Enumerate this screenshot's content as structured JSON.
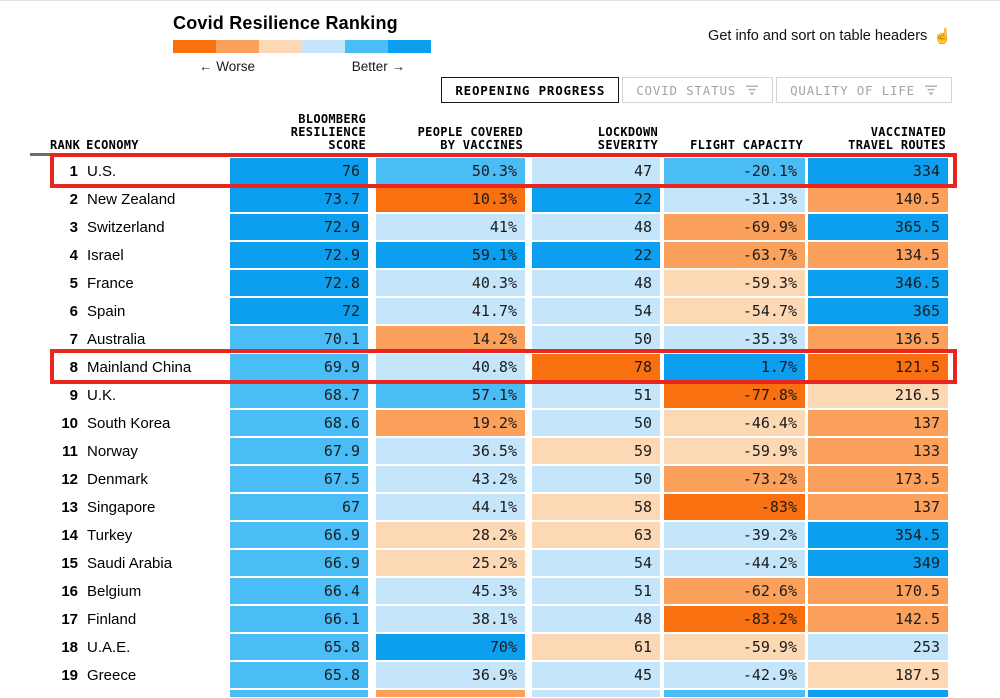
{
  "page": {
    "hint": "Get info and sort on table headers",
    "hint_icon": "☝"
  },
  "header": {
    "title": "Covid Resilience Ranking",
    "legend": {
      "worse": "← Worse",
      "better": "Better →",
      "segments": [
        "dark_orange",
        "medium_orange",
        "pale_orange",
        "pale_blue",
        "medium_blue",
        "bright_blue"
      ]
    },
    "tabs": [
      {
        "label": "REOPENING PROGRESS",
        "active": true,
        "filter_icon": false
      },
      {
        "label": "COVID STATUS",
        "active": false,
        "filter_icon": true
      },
      {
        "label": "QUALITY OF LIFE",
        "active": false,
        "filter_icon": true
      }
    ]
  },
  "chart_data": {
    "type": "table",
    "title": "Covid Resilience Ranking",
    "color_scale": {
      "palette": {
        "dark_orange": "#f8700f",
        "medium_orange": "#fba15c",
        "pale_orange": "#fcd8b5",
        "pale_blue": "#c5e6fa",
        "medium_blue": "#4abdf7",
        "bright_blue": "#0c9ff0"
      },
      "order_worse_to_better": [
        "dark_orange",
        "medium_orange",
        "pale_orange",
        "pale_blue",
        "medium_blue",
        "bright_blue"
      ]
    },
    "highlight_color": "#e8251f",
    "headers": {
      "rank": "RANK",
      "economy": "ECONOMY",
      "score": "BLOOMBERG\nRESILIENCE\nSCORE",
      "vaccines": "PEOPLE COVERED\nBY VACCINES",
      "lockdown": "LOCKDOWN\nSEVERITY",
      "flight": "FLIGHT CAPACITY",
      "routes": "VACCINATED\nTRAVEL ROUTES"
    },
    "rows": [
      {
        "rank": "1",
        "economy": "U.S.",
        "highlight": true,
        "score": [
          "76",
          "bright_blue"
        ],
        "vaccines": [
          "50.3%",
          "medium_blue"
        ],
        "lockdown": [
          "47",
          "pale_blue"
        ],
        "flight": [
          "-20.1%",
          "medium_blue"
        ],
        "routes": [
          "334",
          "bright_blue"
        ]
      },
      {
        "rank": "2",
        "economy": "New Zealand",
        "highlight": false,
        "score": [
          "73.7",
          "bright_blue"
        ],
        "vaccines": [
          "10.3%",
          "dark_orange"
        ],
        "lockdown": [
          "22",
          "bright_blue"
        ],
        "flight": [
          "-31.3%",
          "pale_blue"
        ],
        "routes": [
          "140.5",
          "medium_orange"
        ]
      },
      {
        "rank": "3",
        "economy": "Switzerland",
        "highlight": false,
        "score": [
          "72.9",
          "bright_blue"
        ],
        "vaccines": [
          "41%",
          "pale_blue"
        ],
        "lockdown": [
          "48",
          "pale_blue"
        ],
        "flight": [
          "-69.9%",
          "medium_orange"
        ],
        "routes": [
          "365.5",
          "bright_blue"
        ]
      },
      {
        "rank": "4",
        "economy": "Israel",
        "highlight": false,
        "score": [
          "72.9",
          "bright_blue"
        ],
        "vaccines": [
          "59.1%",
          "bright_blue"
        ],
        "lockdown": [
          "22",
          "bright_blue"
        ],
        "flight": [
          "-63.7%",
          "medium_orange"
        ],
        "routes": [
          "134.5",
          "medium_orange"
        ]
      },
      {
        "rank": "5",
        "economy": "France",
        "highlight": false,
        "score": [
          "72.8",
          "bright_blue"
        ],
        "vaccines": [
          "40.3%",
          "pale_blue"
        ],
        "lockdown": [
          "48",
          "pale_blue"
        ],
        "flight": [
          "-59.3%",
          "pale_orange"
        ],
        "routes": [
          "346.5",
          "bright_blue"
        ]
      },
      {
        "rank": "6",
        "economy": "Spain",
        "highlight": false,
        "score": [
          "72",
          "bright_blue"
        ],
        "vaccines": [
          "41.7%",
          "pale_blue"
        ],
        "lockdown": [
          "54",
          "pale_blue"
        ],
        "flight": [
          "-54.7%",
          "pale_orange"
        ],
        "routes": [
          "365",
          "bright_blue"
        ]
      },
      {
        "rank": "7",
        "economy": "Australia",
        "highlight": false,
        "score": [
          "70.1",
          "medium_blue"
        ],
        "vaccines": [
          "14.2%",
          "medium_orange"
        ],
        "lockdown": [
          "50",
          "pale_blue"
        ],
        "flight": [
          "-35.3%",
          "pale_blue"
        ],
        "routes": [
          "136.5",
          "medium_orange"
        ]
      },
      {
        "rank": "8",
        "economy": "Mainland China",
        "highlight": true,
        "score": [
          "69.9",
          "medium_blue"
        ],
        "vaccines": [
          "40.8%",
          "pale_blue"
        ],
        "lockdown": [
          "78",
          "dark_orange"
        ],
        "flight": [
          "1.7%",
          "bright_blue"
        ],
        "routes": [
          "121.5",
          "dark_orange"
        ]
      },
      {
        "rank": "9",
        "economy": "U.K.",
        "highlight": false,
        "score": [
          "68.7",
          "medium_blue"
        ],
        "vaccines": [
          "57.1%",
          "medium_blue"
        ],
        "lockdown": [
          "51",
          "pale_blue"
        ],
        "flight": [
          "-77.8%",
          "dark_orange"
        ],
        "routes": [
          "216.5",
          "pale_orange"
        ]
      },
      {
        "rank": "10",
        "economy": "South Korea",
        "highlight": false,
        "score": [
          "68.6",
          "medium_blue"
        ],
        "vaccines": [
          "19.2%",
          "medium_orange"
        ],
        "lockdown": [
          "50",
          "pale_blue"
        ],
        "flight": [
          "-46.4%",
          "pale_orange"
        ],
        "routes": [
          "137",
          "medium_orange"
        ]
      },
      {
        "rank": "11",
        "economy": "Norway",
        "highlight": false,
        "score": [
          "67.9",
          "medium_blue"
        ],
        "vaccines": [
          "36.5%",
          "pale_blue"
        ],
        "lockdown": [
          "59",
          "pale_orange"
        ],
        "flight": [
          "-59.9%",
          "pale_orange"
        ],
        "routes": [
          "133",
          "medium_orange"
        ]
      },
      {
        "rank": "12",
        "economy": "Denmark",
        "highlight": false,
        "score": [
          "67.5",
          "medium_blue"
        ],
        "vaccines": [
          "43.2%",
          "pale_blue"
        ],
        "lockdown": [
          "50",
          "pale_blue"
        ],
        "flight": [
          "-73.2%",
          "medium_orange"
        ],
        "routes": [
          "173.5",
          "medium_orange"
        ]
      },
      {
        "rank": "13",
        "economy": "Singapore",
        "highlight": false,
        "score": [
          "67",
          "medium_blue"
        ],
        "vaccines": [
          "44.1%",
          "pale_blue"
        ],
        "lockdown": [
          "58",
          "pale_orange"
        ],
        "flight": [
          "-83%",
          "dark_orange"
        ],
        "routes": [
          "137",
          "medium_orange"
        ]
      },
      {
        "rank": "14",
        "economy": "Turkey",
        "highlight": false,
        "score": [
          "66.9",
          "medium_blue"
        ],
        "vaccines": [
          "28.2%",
          "pale_orange"
        ],
        "lockdown": [
          "63",
          "pale_orange"
        ],
        "flight": [
          "-39.2%",
          "pale_blue"
        ],
        "routes": [
          "354.5",
          "bright_blue"
        ]
      },
      {
        "rank": "15",
        "economy": "Saudi Arabia",
        "highlight": false,
        "score": [
          "66.9",
          "medium_blue"
        ],
        "vaccines": [
          "25.2%",
          "pale_orange"
        ],
        "lockdown": [
          "54",
          "pale_blue"
        ],
        "flight": [
          "-44.2%",
          "pale_blue"
        ],
        "routes": [
          "349",
          "bright_blue"
        ]
      },
      {
        "rank": "16",
        "economy": "Belgium",
        "highlight": false,
        "score": [
          "66.4",
          "medium_blue"
        ],
        "vaccines": [
          "45.3%",
          "pale_blue"
        ],
        "lockdown": [
          "51",
          "pale_blue"
        ],
        "flight": [
          "-62.6%",
          "medium_orange"
        ],
        "routes": [
          "170.5",
          "medium_orange"
        ]
      },
      {
        "rank": "17",
        "economy": "Finland",
        "highlight": false,
        "score": [
          "66.1",
          "medium_blue"
        ],
        "vaccines": [
          "38.1%",
          "pale_blue"
        ],
        "lockdown": [
          "48",
          "pale_blue"
        ],
        "flight": [
          "-83.2%",
          "dark_orange"
        ],
        "routes": [
          "142.5",
          "medium_orange"
        ]
      },
      {
        "rank": "18",
        "economy": "U.A.E.",
        "highlight": false,
        "score": [
          "65.8",
          "medium_blue"
        ],
        "vaccines": [
          "70%",
          "bright_blue"
        ],
        "lockdown": [
          "61",
          "pale_orange"
        ],
        "flight": [
          "-59.9%",
          "pale_orange"
        ],
        "routes": [
          "253",
          "pale_blue"
        ]
      },
      {
        "rank": "19",
        "economy": "Greece",
        "highlight": false,
        "score": [
          "65.8",
          "medium_blue"
        ],
        "vaccines": [
          "36.9%",
          "pale_blue"
        ],
        "lockdown": [
          "45",
          "pale_blue"
        ],
        "flight": [
          "-42.9%",
          "pale_blue"
        ],
        "routes": [
          "187.5",
          "pale_orange"
        ]
      }
    ],
    "partial_next_row": [
      "medium_blue",
      "medium_orange",
      "pale_blue",
      "medium_blue",
      "bright_blue"
    ]
  }
}
